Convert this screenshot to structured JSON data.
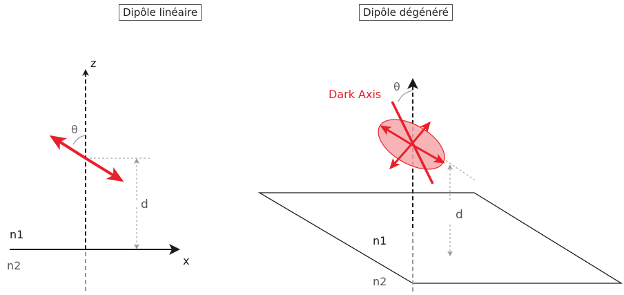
{
  "left_panel": {
    "title": "Dipôle linéaire",
    "axis_z": "z",
    "axis_x": "x",
    "theta": "θ",
    "distance": "d",
    "medium_top": "n1",
    "medium_bottom": "n2"
  },
  "right_panel": {
    "title": "Dipôle dégénéré",
    "dark_axis": "Dark Axis",
    "theta": "θ",
    "distance": "d",
    "medium_top": "n1",
    "medium_bottom": "n2"
  },
  "colors": {
    "dipole": "#e8202a",
    "dipole_fill": "#f4a7aa",
    "axis": "#1a1a1a",
    "guide": "#999999",
    "gray_text": "#555555"
  }
}
